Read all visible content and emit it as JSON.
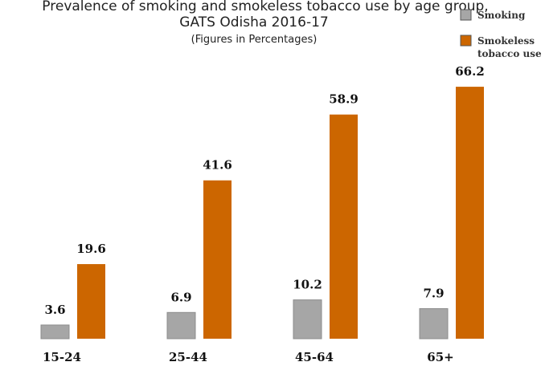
{
  "chart_data": {
    "type": "bar",
    "title": [
      "Prevalence of smoking and smokeless tobacco use by age group,",
      "GATS Odisha 2016-17"
    ],
    "subtitle": "(Figures in Percentages)",
    "categories": [
      "15-24",
      "25-44",
      "45-64",
      "65+"
    ],
    "series": [
      {
        "name": "Smoking",
        "color": "#a6a6a6",
        "values": [
          3.6,
          6.9,
          10.2,
          7.9
        ]
      },
      {
        "name": "Smokeless tobacco use",
        "color": "#cc6600",
        "values": [
          19.6,
          41.6,
          58.9,
          66.2
        ]
      }
    ]
  }
}
